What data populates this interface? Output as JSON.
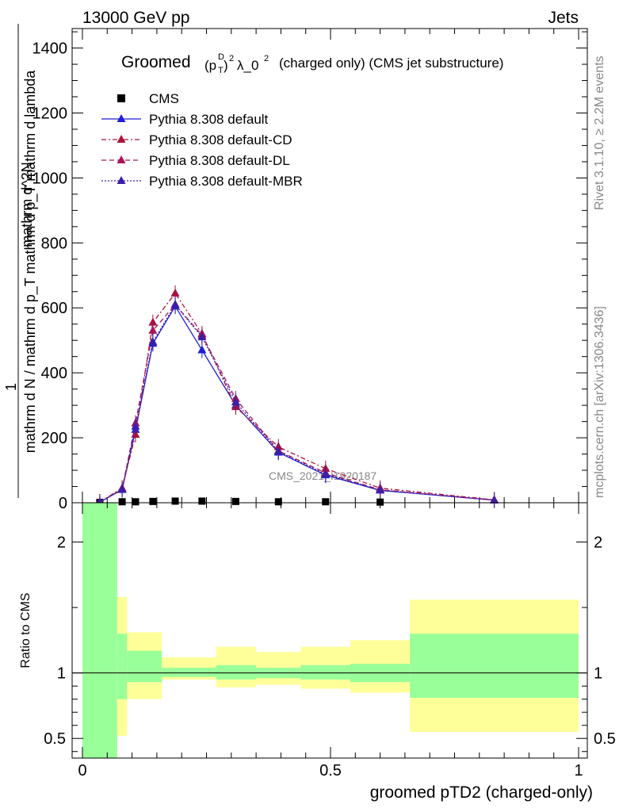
{
  "header": {
    "left": "13000 GeV pp",
    "right": "Jets",
    "side_top": "Rivet 3.1.10, ≥ 2.2M events",
    "side_bottom": "mcplots.cern.ch [arXiv:1306.3436]",
    "watermark": "CMS_2021_I1920187"
  },
  "colors": {
    "cms": "#000000",
    "default": "#1f1fd2",
    "default_cd": "#a8143c",
    "default_dl": "#a8145a",
    "default_mbr": "#3b1faa",
    "band_inner": "#99ff99",
    "band_outer": "#ffff99"
  },
  "chart_data": [
    {
      "type": "line",
      "title_prefix": "Groomed",
      "title_suffix": "(charged only) (CMS jet substructure)",
      "xlabel": "",
      "ylabel_num": "1",
      "ylabel_den": "mathrm d N / mathrm d p_T mathrm d p_T mathrm d lambda",
      "ylabel_top": "mathrm d^2N",
      "xlim": [
        0,
        1
      ],
      "ylim": [
        0,
        1460
      ],
      "yticks": [
        0,
        200,
        400,
        600,
        800,
        1000,
        1200,
        1400
      ],
      "legend_position": "top-left",
      "series": [
        {
          "name": "CMS",
          "style": "marker",
          "x": [
            0.035,
            0.08,
            0.107,
            0.142,
            0.187,
            0.241,
            0.309,
            0.395,
            0.49,
            0.6
          ],
          "y": [
            1,
            3,
            3,
            4,
            5,
            5,
            4,
            3,
            3,
            2
          ]
        },
        {
          "name": "Pythia 8.308 default",
          "style": "solid",
          "x": [
            0.035,
            0.08,
            0.107,
            0.142,
            0.187,
            0.241,
            0.309,
            0.395,
            0.49,
            0.6,
            0.83
          ],
          "y": [
            2,
            40,
            225,
            490,
            605,
            470,
            300,
            155,
            85,
            38,
            8
          ]
        },
        {
          "name": "Pythia 8.308 default-CD",
          "style": "dashdot",
          "x": [
            0.035,
            0.08,
            0.107,
            0.142,
            0.187,
            0.241,
            0.309,
            0.395,
            0.49,
            0.6,
            0.83
          ],
          "y": [
            2,
            45,
            210,
            555,
            645,
            520,
            295,
            172,
            105,
            45,
            9
          ]
        },
        {
          "name": "Pythia 8.308 default-DL",
          "style": "dashed",
          "x": [
            0.035,
            0.08,
            0.107,
            0.142,
            0.187,
            0.241,
            0.309,
            0.395,
            0.49,
            0.6,
            0.83
          ],
          "y": [
            2,
            42,
            245,
            530,
            610,
            515,
            320,
            160,
            92,
            40,
            8
          ]
        },
        {
          "name": "Pythia 8.308 default-MBR",
          "style": "dotted",
          "x": [
            0.035,
            0.08,
            0.107,
            0.142,
            0.187,
            0.241,
            0.309,
            0.395,
            0.49,
            0.6,
            0.83
          ],
          "y": [
            2,
            41,
            235,
            495,
            610,
            510,
            310,
            158,
            88,
            39,
            8
          ]
        }
      ]
    },
    {
      "type": "area",
      "ylabel": "Ratio to CMS",
      "xlabel": "groomed pTD2 (charged-only)",
      "xlim": [
        0,
        1
      ],
      "ylim": [
        0.35,
        2.3
      ],
      "yticks": [
        0.5,
        1,
        2
      ],
      "xticks": [
        0,
        0.5,
        1
      ],
      "reference_line": 1,
      "bins": [
        {
          "x": [
            0.0,
            0.07
          ],
          "inner": [
            0.2,
            3.0
          ],
          "outer": [
            0.2,
            3.0
          ]
        },
        {
          "x": [
            0.07,
            0.09
          ],
          "inner": [
            0.8,
            1.3
          ],
          "outer": [
            0.52,
            1.58
          ]
        },
        {
          "x": [
            0.09,
            0.16
          ],
          "inner": [
            0.93,
            1.17
          ],
          "outer": [
            0.8,
            1.31
          ]
        },
        {
          "x": [
            0.16,
            0.27
          ],
          "inner": [
            0.97,
            1.04
          ],
          "outer": [
            0.95,
            1.12
          ]
        },
        {
          "x": [
            0.27,
            0.35
          ],
          "inner": [
            0.95,
            1.06
          ],
          "outer": [
            0.89,
            1.2
          ]
        },
        {
          "x": [
            0.35,
            0.44
          ],
          "inner": [
            0.96,
            1.04
          ],
          "outer": [
            0.91,
            1.16
          ]
        },
        {
          "x": [
            0.44,
            0.54
          ],
          "inner": [
            0.95,
            1.06
          ],
          "outer": [
            0.88,
            1.2
          ]
        },
        {
          "x": [
            0.54,
            0.66
          ],
          "inner": [
            0.93,
            1.07
          ],
          "outer": [
            0.85,
            1.25
          ]
        },
        {
          "x": [
            0.66,
            1.0
          ],
          "inner": [
            0.81,
            1.3
          ],
          "outer": [
            0.55,
            1.56
          ]
        }
      ]
    }
  ]
}
